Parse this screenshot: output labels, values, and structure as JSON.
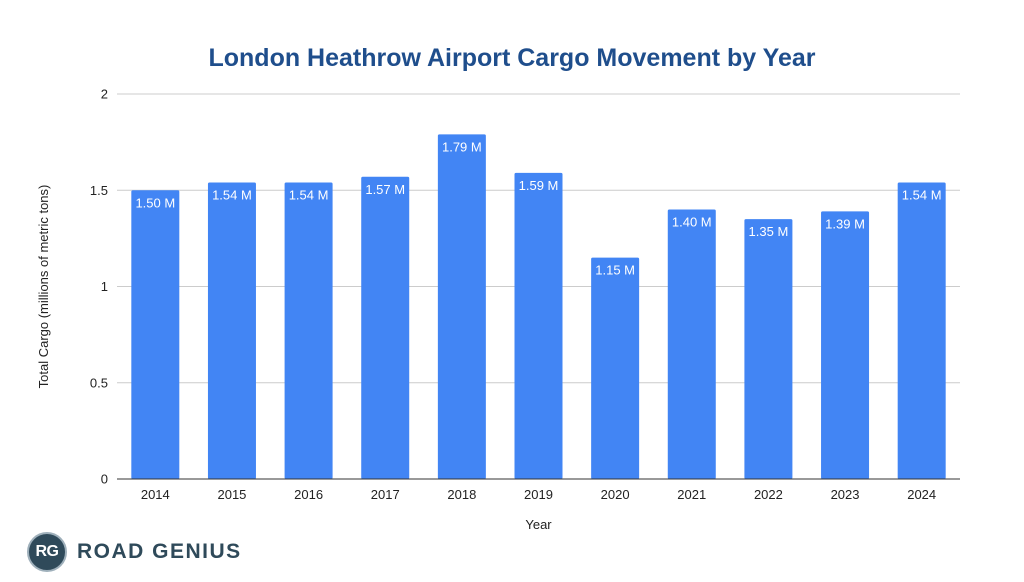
{
  "chart_data": {
    "type": "bar",
    "title": "London Heathrow Airport Cargo Movement by Year",
    "xlabel": "Year",
    "ylabel": "Total Cargo (millions of metric tons)",
    "categories": [
      "2014",
      "2015",
      "2016",
      "2017",
      "2018",
      "2019",
      "2020",
      "2021",
      "2022",
      "2023",
      "2024"
    ],
    "values": [
      1.5,
      1.54,
      1.54,
      1.57,
      1.79,
      1.59,
      1.15,
      1.4,
      1.35,
      1.39,
      1.54
    ],
    "data_labels": [
      "1.50 M",
      "1.54 M",
      "1.54 M",
      "1.57 M",
      "1.79 M",
      "1.59 M",
      "1.15 M",
      "1.40 M",
      "1.35 M",
      "1.39 M",
      "1.54 M"
    ],
    "ylim": [
      0,
      2
    ],
    "yticks": [
      0,
      0.5,
      1,
      1.5,
      2
    ],
    "ytick_labels": [
      "0",
      "0.5",
      "1",
      "1.5",
      "2"
    ],
    "grid": true,
    "legend": "none",
    "bar_color": "#4285f4",
    "title_color": "#1f4e8c"
  },
  "logo": {
    "badge": "RG",
    "text": "ROAD GENIUS"
  }
}
